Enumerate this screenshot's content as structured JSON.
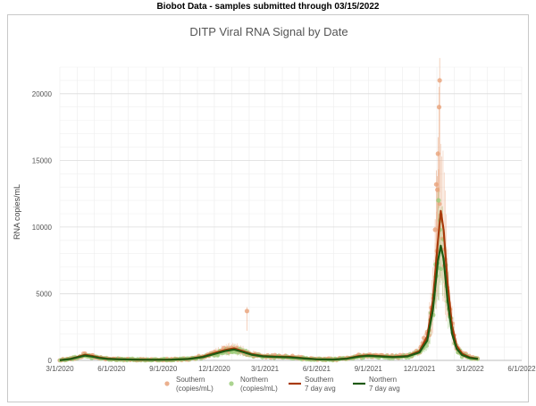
{
  "caption": "Biobot Data - samples submitted through 03/15/2022",
  "chart_data": {
    "type": "scatter",
    "title": "DITP Viral RNA Signal by Date",
    "xlabel": "",
    "ylabel": "RNA copies/mL",
    "ylim": [
      0,
      22000
    ],
    "yticks": [
      0,
      5000,
      10000,
      15000,
      20000
    ],
    "xlim": [
      "2020-03-01",
      "2022-06-01"
    ],
    "xticks": [
      "3/1/2020",
      "6/1/2020",
      "9/1/2020",
      "12/1/2020",
      "3/1/2021",
      "6/1/2021",
      "9/1/2021",
      "12/1/2021",
      "3/1/2022",
      "6/1/2022"
    ],
    "grid": true,
    "legend_position": "bottom",
    "colors": {
      "southern_points": "#e8a27a",
      "northern_points": "#9ccc7c",
      "southern_avg": "#a83a0a",
      "northern_avg": "#1f5a12"
    },
    "legend": [
      {
        "line1": "Southern",
        "line2": "(copies/mL)",
        "kind": "point"
      },
      {
        "line1": "Northern",
        "line2": "(copies/mL)",
        "kind": "point"
      },
      {
        "line1": "Southern",
        "line2": "7 day avg",
        "kind": "line"
      },
      {
        "line1": "Northern",
        "line2": "7 day avg",
        "kind": "line"
      }
    ],
    "series": [
      {
        "key": "southern_avg",
        "points": [
          [
            "2020-03-01",
            20
          ],
          [
            "2020-03-20",
            120
          ],
          [
            "2020-04-05",
            300
          ],
          [
            "2020-04-15",
            420
          ],
          [
            "2020-04-28",
            330
          ],
          [
            "2020-05-10",
            220
          ],
          [
            "2020-05-25",
            130
          ],
          [
            "2020-06-15",
            90
          ],
          [
            "2020-07-15",
            60
          ],
          [
            "2020-08-15",
            50
          ],
          [
            "2020-09-15",
            60
          ],
          [
            "2020-10-15",
            110
          ],
          [
            "2020-11-10",
            280
          ],
          [
            "2020-12-01",
            550
          ],
          [
            "2020-12-20",
            780
          ],
          [
            "2021-01-05",
            900
          ],
          [
            "2021-01-20",
            700
          ],
          [
            "2021-02-05",
            480
          ],
          [
            "2021-02-25",
            330
          ],
          [
            "2021-03-20",
            290
          ],
          [
            "2021-04-15",
            260
          ],
          [
            "2021-05-10",
            160
          ],
          [
            "2021-06-01",
            90
          ],
          [
            "2021-07-01",
            70
          ],
          [
            "2021-07-25",
            150
          ],
          [
            "2021-08-15",
            320
          ],
          [
            "2021-09-01",
            380
          ],
          [
            "2021-09-20",
            330
          ],
          [
            "2021-10-15",
            270
          ],
          [
            "2021-11-10",
            330
          ],
          [
            "2021-12-01",
            700
          ],
          [
            "2021-12-15",
            1800
          ],
          [
            "2021-12-25",
            4500
          ],
          [
            "2022-01-03",
            9000
          ],
          [
            "2022-01-08",
            11200
          ],
          [
            "2022-01-13",
            9800
          ],
          [
            "2022-01-20",
            5800
          ],
          [
            "2022-01-28",
            2600
          ],
          [
            "2022-02-05",
            1100
          ],
          [
            "2022-02-15",
            500
          ],
          [
            "2022-03-01",
            220
          ],
          [
            "2022-03-15",
            130
          ]
        ]
      },
      {
        "key": "northern_avg",
        "points": [
          [
            "2020-03-01",
            15
          ],
          [
            "2020-03-20",
            100
          ],
          [
            "2020-04-05",
            260
          ],
          [
            "2020-04-15",
            360
          ],
          [
            "2020-04-28",
            280
          ],
          [
            "2020-05-10",
            180
          ],
          [
            "2020-05-25",
            110
          ],
          [
            "2020-06-15",
            80
          ],
          [
            "2020-07-15",
            55
          ],
          [
            "2020-08-15",
            45
          ],
          [
            "2020-09-15",
            55
          ],
          [
            "2020-10-15",
            100
          ],
          [
            "2020-11-10",
            240
          ],
          [
            "2020-12-01",
            480
          ],
          [
            "2020-12-20",
            700
          ],
          [
            "2021-01-05",
            820
          ],
          [
            "2021-01-20",
            640
          ],
          [
            "2021-02-05",
            430
          ],
          [
            "2021-02-25",
            300
          ],
          [
            "2021-03-20",
            260
          ],
          [
            "2021-04-15",
            230
          ],
          [
            "2021-05-10",
            140
          ],
          [
            "2021-06-01",
            80
          ],
          [
            "2021-07-01",
            60
          ],
          [
            "2021-07-25",
            130
          ],
          [
            "2021-08-15",
            280
          ],
          [
            "2021-09-01",
            340
          ],
          [
            "2021-09-20",
            300
          ],
          [
            "2021-10-15",
            240
          ],
          [
            "2021-11-10",
            300
          ],
          [
            "2021-12-01",
            600
          ],
          [
            "2021-12-15",
            1500
          ],
          [
            "2021-12-25",
            3800
          ],
          [
            "2022-01-03",
            7500
          ],
          [
            "2022-01-08",
            8600
          ],
          [
            "2022-01-13",
            7600
          ],
          [
            "2022-01-20",
            4500
          ],
          [
            "2022-01-28",
            2000
          ],
          [
            "2022-02-05",
            900
          ],
          [
            "2022-02-15",
            400
          ],
          [
            "2022-03-01",
            180
          ],
          [
            "2022-03-15",
            110
          ]
        ]
      }
    ],
    "outliers": [
      {
        "key": "southern_points",
        "points": [
          [
            "2021-01-28",
            3700
          ],
          [
            "2021-12-31",
            13200
          ],
          [
            "2022-01-03",
            15500
          ],
          [
            "2022-01-05",
            19000
          ],
          [
            "2022-01-06",
            21000
          ],
          [
            "2021-12-29",
            9800
          ],
          [
            "2022-01-02",
            12800
          ]
        ]
      },
      {
        "key": "northern_points",
        "points": [
          [
            "2022-01-04",
            12000
          ],
          [
            "2022-01-07",
            10500
          ],
          [
            "2021-12-30",
            7200
          ]
        ]
      }
    ]
  }
}
